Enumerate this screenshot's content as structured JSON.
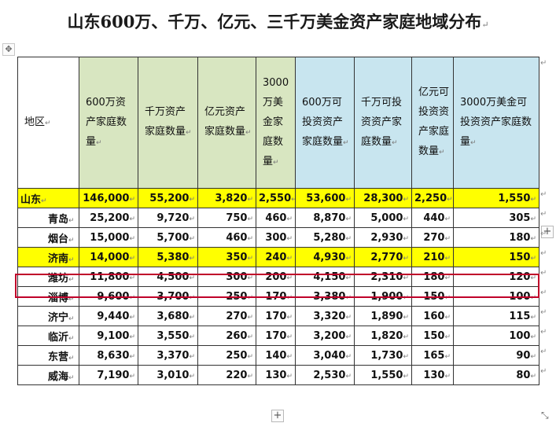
{
  "title": "山东600万、千万、亿元、三千万美金资产家庭地域分布",
  "header": {
    "region": "地区",
    "cols": [
      "600万资产家庭数量",
      "千万资产家庭数量",
      "亿元资产家庭数量",
      "3000万美金家庭数量",
      "600万可投资资产家庭数量",
      "千万可投资资产家庭数量",
      "亿元可投资资产家庭数量",
      "3000万美金可投资资产家庭数量"
    ]
  },
  "rows": [
    {
      "region": "山东",
      "v": [
        "146,000",
        "55,200",
        "3,820",
        "2,550",
        "53,600",
        "28,300",
        "2,250",
        "1,550"
      ],
      "highlight": true
    },
    {
      "region": "青岛",
      "v": [
        "25,200",
        "9,720",
        "750",
        "460",
        "8,870",
        "5,000",
        "440",
        "305"
      ],
      "highlight": false
    },
    {
      "region": "烟台",
      "v": [
        "15,000",
        "5,700",
        "460",
        "300",
        "5,280",
        "2,930",
        "270",
        "180"
      ],
      "highlight": false
    },
    {
      "region": "济南",
      "v": [
        "14,000",
        "5,380",
        "350",
        "240",
        "4,930",
        "2,770",
        "210",
        "150"
      ],
      "highlight": true
    },
    {
      "region": "潍坊",
      "v": [
        "11,800",
        "4,500",
        "300",
        "200",
        "4,150",
        "2,310",
        "180",
        "120"
      ],
      "highlight": false
    },
    {
      "region": "淄博",
      "v": [
        "9,600",
        "3,700",
        "250",
        "170",
        "3,380",
        "1,900",
        "150",
        "100"
      ],
      "highlight": false
    },
    {
      "region": "济宁",
      "v": [
        "9,440",
        "3,680",
        "270",
        "170",
        "3,320",
        "1,890",
        "160",
        "115"
      ],
      "highlight": false
    },
    {
      "region": "临沂",
      "v": [
        "9,100",
        "3,550",
        "260",
        "170",
        "3,200",
        "1,820",
        "150",
        "100"
      ],
      "highlight": false
    },
    {
      "region": "东营",
      "v": [
        "8,630",
        "3,370",
        "250",
        "140",
        "3,040",
        "1,730",
        "165",
        "90"
      ],
      "highlight": false
    },
    {
      "region": "威海",
      "v": [
        "7,190",
        "3,010",
        "220",
        "130",
        "2,530",
        "1,550",
        "130",
        "80"
      ],
      "highlight": false
    }
  ],
  "colors": {
    "green_header": "#d8e6c1",
    "blue_header": "#c8e5ef",
    "highlight": "#ffff00",
    "focus_box": "#c0002a"
  },
  "icons": {
    "move": "move-handle-icon",
    "add": "plus-icon",
    "resize": "resize-icon"
  }
}
